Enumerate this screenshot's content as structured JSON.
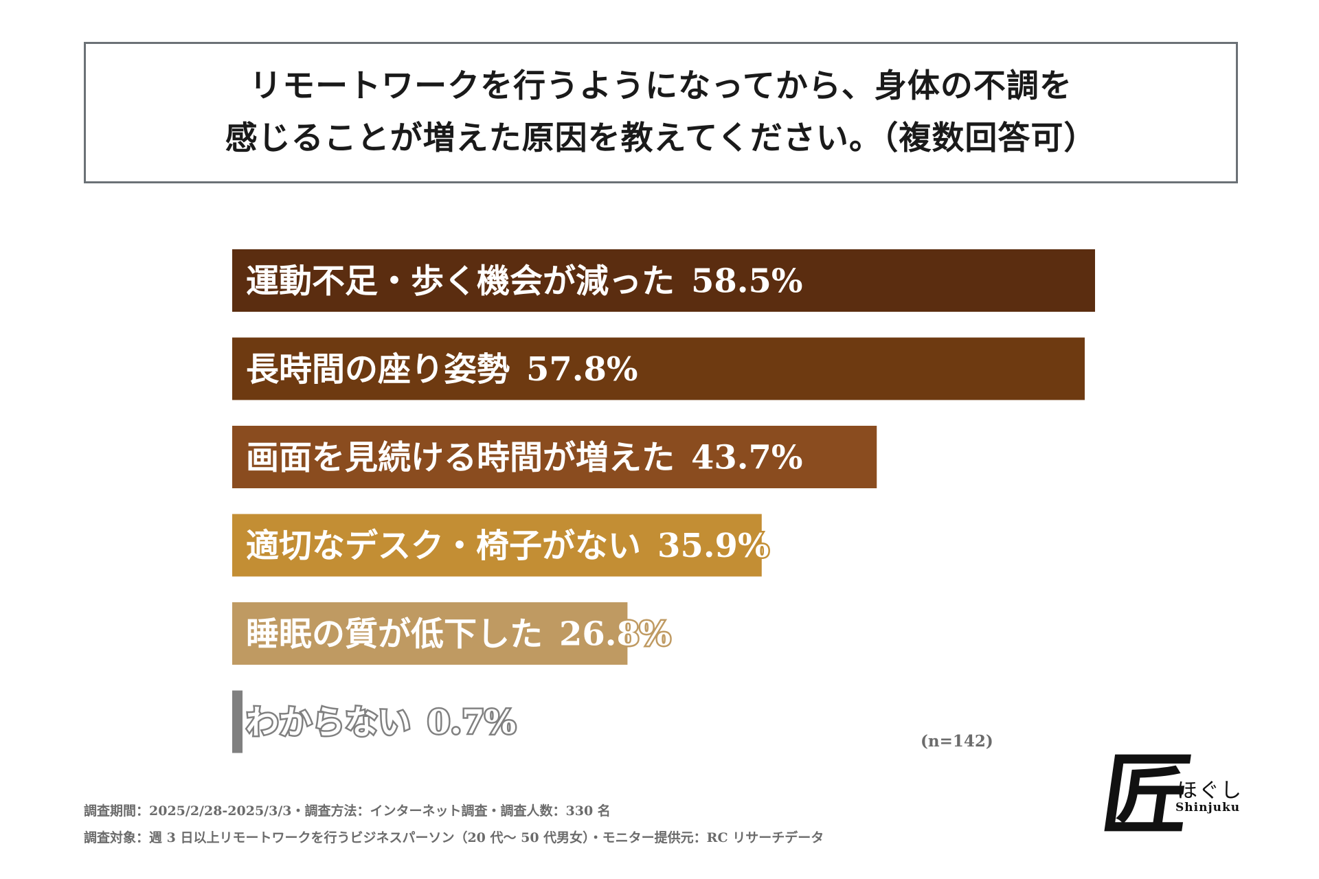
{
  "title": {
    "line1": "リモートワークを行うようになってから、身体の不調を",
    "line2": "感じることが増えた原因を教えてください。（複数回答可）"
  },
  "chart_data": {
    "type": "bar",
    "orientation": "horizontal",
    "title": "リモートワークを行うようになってから、身体の不調を感じることが増えた原因を教えてください。（複数回答可）",
    "categories": [
      "運動不足・歩く機会が減った",
      "長時間の座り姿勢",
      "画面を見続ける時間が増えた",
      "適切なデスク・椅子がない",
      "睡眠の質が低下した",
      "わからない"
    ],
    "values": [
      58.5,
      57.8,
      43.7,
      35.9,
      26.8,
      0.7
    ],
    "value_labels": [
      "58.5%",
      "57.8%",
      "43.7%",
      "35.9%",
      "26.8%",
      "0.7%"
    ],
    "unit": "%",
    "xlim": [
      0,
      58.5
    ],
    "colors": [
      "#5b2d10",
      "#6e3a11",
      "#8a4c1f",
      "#c38e34",
      "#bf9a62",
      "#808080"
    ],
    "sample_label": "(n=142)"
  },
  "footnotes": {
    "line1": "調査期間：2025/2/28-2025/3/3・調査方法：インターネット調査・調査人数：330 名",
    "line2": "調査対象：週 3 日以上リモートワークを行うビジネスパーソン（20 代〜 50 代男女）・モニター提供元：RC リサーチデータ"
  },
  "logo": {
    "kanji": "匠",
    "kana": "ほぐし",
    "english": "Shinjuku"
  }
}
